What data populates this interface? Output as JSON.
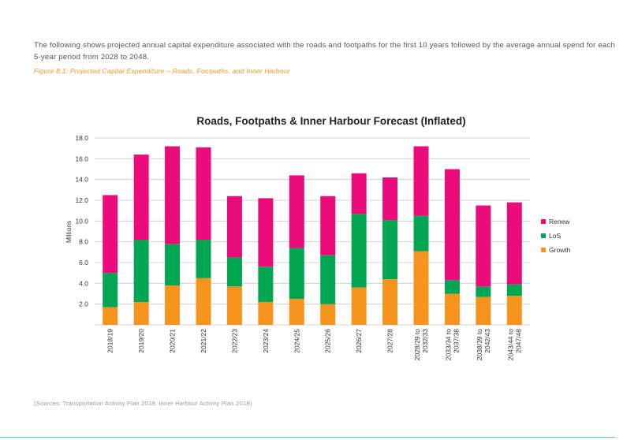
{
  "text": {
    "intro": "The following shows projected annual capital expenditure associated with the roads and footpaths for the first 10 years followed by the average annual spend for each 5-year period from 2028 to 2048.",
    "caption": "Figure 8.1: Projected Capital Expenditure – Roads, Footpaths, and Inner Harbour",
    "source": "(Sources: Transportation Activity Plan 2018; Inner Harbour Activity Plan 2018)"
  },
  "colors": {
    "Growth": "#f7941d",
    "LoS": "#00a651",
    "Renew": "#ec0b7a",
    "grid": "#c8c8c8"
  },
  "chart_data": {
    "type": "bar",
    "stacked": true,
    "title": "Roads, Footpaths & Inner Harbour Forecast (Inflated)",
    "ylabel": "Millions",
    "ylim": [
      0,
      18
    ],
    "yticks": [
      "2.0",
      "4.0",
      "6.0",
      "8.0",
      "10.0",
      "12.0",
      "14.0",
      "16.0",
      "18.0"
    ],
    "grid": true,
    "legend": "right",
    "categories": [
      [
        "2018/19"
      ],
      [
        "2019/20"
      ],
      [
        "2020/21"
      ],
      [
        "2021/22"
      ],
      [
        "2022/23"
      ],
      [
        "2023/24"
      ],
      [
        "2024/25"
      ],
      [
        "2025/26"
      ],
      [
        "2026/27"
      ],
      [
        "2027/28"
      ],
      [
        "2028/29 to",
        "2032/33"
      ],
      [
        "2033/34 to",
        "2037/38"
      ],
      [
        "2038/39 to",
        "2042/43"
      ],
      [
        "2043/44 to",
        "2047/48"
      ]
    ],
    "series": [
      {
        "name": "Growth",
        "values": [
          1.7,
          2.2,
          3.8,
          4.5,
          3.7,
          2.2,
          2.5,
          2.0,
          3.6,
          4.4,
          7.1,
          3.0,
          2.7,
          2.8
        ]
      },
      {
        "name": "LoS",
        "values": [
          3.3,
          6.0,
          4.0,
          3.7,
          2.8,
          3.4,
          4.9,
          4.7,
          7.1,
          5.7,
          3.4,
          1.3,
          1.0,
          1.1
        ]
      },
      {
        "name": "Renew",
        "values": [
          7.5,
          8.2,
          9.4,
          8.9,
          5.9,
          6.6,
          7.0,
          5.7,
          3.9,
          4.1,
          6.7,
          10.7,
          7.8,
          7.9
        ]
      }
    ],
    "legend_order": [
      "Renew",
      "LoS",
      "Growth"
    ]
  }
}
